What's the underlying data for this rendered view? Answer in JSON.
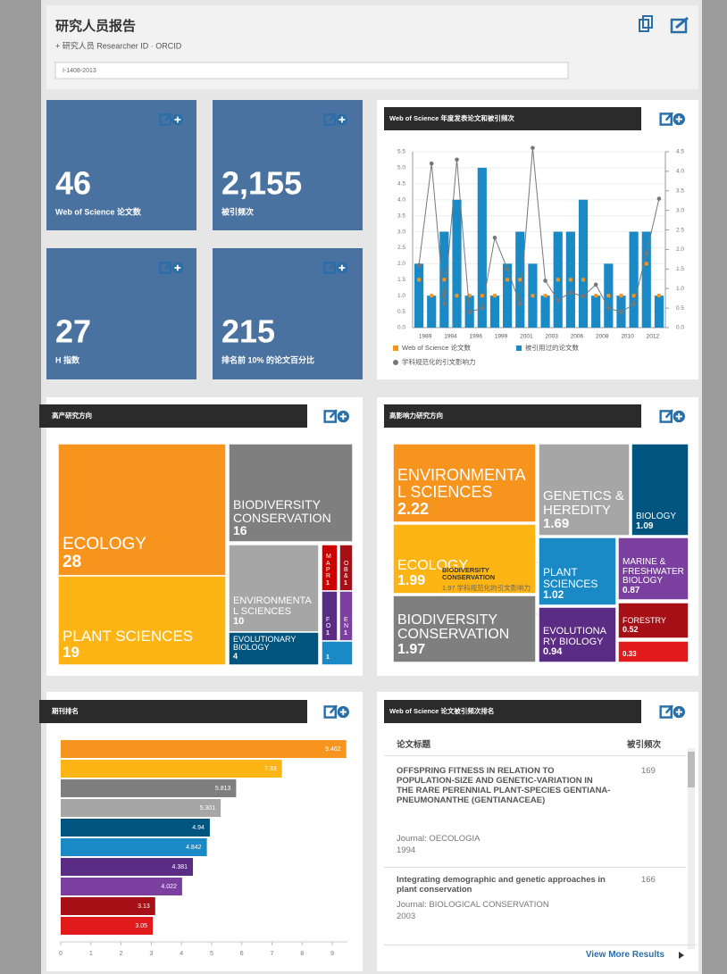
{
  "header": {
    "title": "研究人员报告",
    "subtitle": "+ 研究人员 Researcher ID · ORCID",
    "researcher_id": "I-1408-2013"
  },
  "tiles": [
    {
      "value": "46",
      "label": "Web of Science 论文数"
    },
    {
      "value": "2,155",
      "label": "被引频次"
    },
    {
      "value": "27",
      "label": "H 指数"
    },
    {
      "value": "215",
      "label": "排名前 10% 的论文百分比"
    }
  ],
  "chart_data": [
    {
      "type": "combo",
      "title": "Web of Science 年度发表论文和被引频次",
      "categories": [
        "1989",
        null,
        "1994",
        null,
        "1996",
        null,
        "1999",
        null,
        "2001",
        null,
        "2003",
        null,
        "2006",
        null,
        "2008",
        null,
        "2010",
        null,
        "2012",
        null
      ],
      "series": [
        {
          "name": "Web of Science 论文数",
          "color": "#f7941d",
          "mark": "point",
          "values": [
            1.5,
            1,
            1.5,
            1,
            1,
            1,
            1,
            1.5,
            1.5,
            1,
            1,
            1.5,
            1.5,
            1.5,
            1,
            1,
            1,
            1,
            2,
            1
          ]
        },
        {
          "name": "被引用过的论文数",
          "color": "#1a8ac6",
          "mark": "bar",
          "values": [
            2,
            1,
            3,
            4,
            1,
            5,
            1,
            2,
            3,
            2,
            1,
            3,
            3,
            4,
            1,
            2,
            1,
            3,
            3,
            1
          ]
        },
        {
          "name": "学科规范化的引文影响力",
          "color": "#777777",
          "mark": "line",
          "axis": "y2",
          "values": [
            1.6,
            4.2,
            0.6,
            4.3,
            0.4,
            0.5,
            2.3,
            1.5,
            0.6,
            4.6,
            1.2,
            0.7,
            0.9,
            0.8,
            1.1,
            0.5,
            0.4,
            0.6,
            1.9,
            3.3
          ]
        }
      ],
      "ylim": [
        0,
        5.5
      ],
      "yticks": [
        {
          "value": 0,
          "label": "0.0"
        },
        0.5,
        {
          "value": 1,
          "label": "1.0"
        },
        1.5,
        {
          "value": 2,
          "label": "2.0"
        },
        2.5,
        {
          "value": 3,
          "label": "3.0"
        },
        3.5,
        {
          "value": 4,
          "label": "4.0"
        },
        4.5,
        {
          "value": 5,
          "label": "5.0"
        },
        5.5
      ],
      "y2lim": [
        0,
        4.5
      ],
      "y2ticks": [
        {
          "value": 0,
          "label": "0.0"
        },
        0.5,
        {
          "value": 1,
          "label": "1.0"
        },
        1.5,
        {
          "value": 2,
          "label": "2.0"
        },
        2.5,
        {
          "value": 3,
          "label": "3.0"
        },
        3.5,
        {
          "value": 4,
          "label": "4.0"
        },
        4.5
      ],
      "grid": true
    },
    {
      "type": "treemap",
      "title": "高产研究方向",
      "categories": [
        "ECOLOGY",
        "PLANT SCIENCES",
        "BIODIVERSITY CONSERVATION",
        "ENVIRONMENTAL SCIENCES",
        "EVOLUTIONARY BIOLOGY",
        "MA PR",
        "OB &",
        "FO",
        "EN",
        null
      ],
      "values": [
        28,
        19,
        16,
        10,
        4,
        1,
        1,
        1,
        1,
        1
      ],
      "colors": [
        "#f7941d",
        "#fdb515",
        "#7f7f7f",
        "#a6a6a6",
        "#00557f",
        "#cc0000",
        "#a50f15",
        "#5b2c83",
        "#7b3fa0",
        "#1a8ac6"
      ]
    },
    {
      "type": "treemap",
      "title": "高影响力研究方向",
      "categories": [
        "ENVIRONMENTAL SCIENCES",
        "ECOLOGY",
        "BIODIVERSITY CONSERVATION",
        "GENETICS & HEREDITY",
        "BIOLOGY",
        "PLANT SCIENCES",
        "MARINE & FRESHWATER BIOLOGY",
        "EVOLUTIONARY BIOLOGY",
        "FORESTRY",
        null
      ],
      "values": [
        2.22,
        1.99,
        1.97,
        1.69,
        1.09,
        1.02,
        0.87,
        0.94,
        0.52,
        0.33
      ],
      "colors": [
        "#f7941d",
        "#fdb515",
        "#7f7f7f",
        "#a6a6a6",
        "#00557f",
        "#1a8ac6",
        "#7b3fa0",
        "#5b2c83",
        "#a50f15",
        "#e31a1c"
      ]
    },
    {
      "type": "hbar",
      "title": "期刊排名",
      "values": [
        9.462,
        7.33,
        5.813,
        5.301,
        4.94,
        4.842,
        4.381,
        4.022,
        3.13,
        3.05
      ],
      "colors": [
        "#f7941d",
        "#fdb515",
        "#7f7f7f",
        "#a6a6a6",
        "#00557f",
        "#1a8ac6",
        "#5b2c83",
        "#7b3fa0",
        "#a50f15",
        "#e31a1c"
      ],
      "xlim": [
        0,
        9.5
      ],
      "xticks": [
        0,
        1,
        2,
        3,
        4,
        5,
        6,
        7,
        8,
        9
      ]
    }
  ],
  "tooltip": {
    "title": "BIODIVERSITY CONSERVATION",
    "text": "1.97 学科规范化的引文影响力"
  },
  "table": {
    "title": "Web of Science 论文被引频次排名",
    "columns": [
      "论文标题",
      "被引频次"
    ],
    "rows": [
      {
        "title": "OFFSPRING FITNESS IN RELATION TO POPULATION-SIZE AND GENETIC-VARIATION IN THE RARE PERENNIAL PLANT-SPECIES GENTIANA-PNEUMONANTHE (GENTIANACEAE)",
        "journal": "Journal: OECOLOGIA",
        "year": "1994",
        "citations": "169"
      },
      {
        "title": "Integrating demographic and genetic approaches in plant conservation",
        "journal": "Journal: BIOLOGICAL CONSERVATION",
        "year": "2003",
        "citations": "166"
      }
    ],
    "more": "View More Results"
  }
}
